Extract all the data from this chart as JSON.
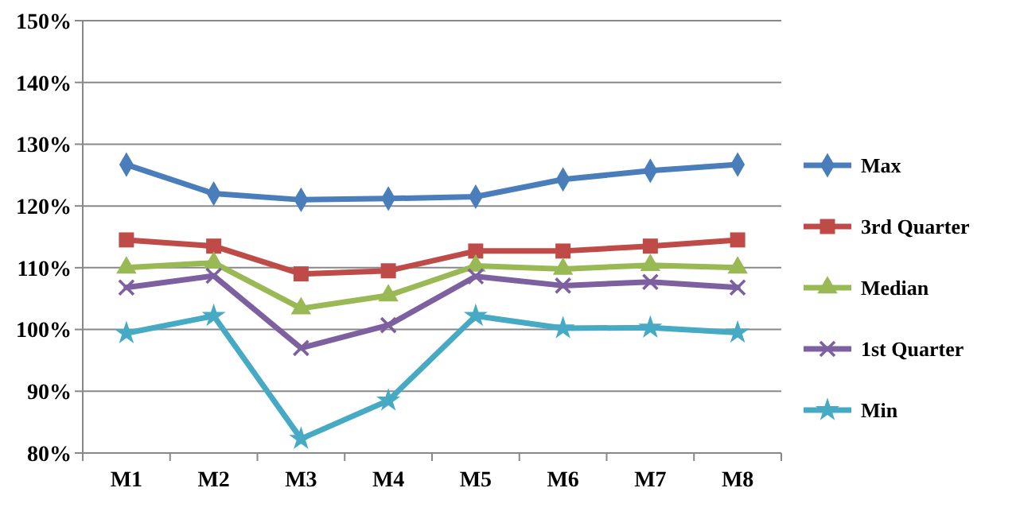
{
  "chart_data": {
    "type": "line",
    "categories": [
      "M1",
      "M2",
      "M3",
      "M4",
      "M5",
      "M6",
      "M7",
      "M8"
    ],
    "series": [
      {
        "name": "Max",
        "color": "#4a7ebb",
        "marker": "diamond",
        "values": [
          126.7,
          122,
          121,
          121.2,
          121.5,
          124.3,
          125.7,
          126.7
        ]
      },
      {
        "name": "3rd Quarter",
        "color": "#be4b48",
        "marker": "square",
        "values": [
          114.5,
          113.5,
          109,
          109.5,
          112.7,
          112.7,
          113.5,
          114.5
        ]
      },
      {
        "name": "Median",
        "color": "#98b954",
        "marker": "triangle",
        "values": [
          110,
          110.8,
          103.4,
          105.5,
          110.3,
          109.8,
          110.4,
          110
        ]
      },
      {
        "name": "1st Quarter",
        "color": "#7d60a0",
        "marker": "cross",
        "values": [
          106.8,
          108.7,
          97,
          100.7,
          108.6,
          107.1,
          107.7,
          106.8
        ]
      },
      {
        "name": "Min",
        "color": "#46aac5",
        "marker": "star",
        "values": [
          99.4,
          102.2,
          82.3,
          88.5,
          102.2,
          100.2,
          100.3,
          99.5
        ]
      }
    ],
    "ylim": [
      80,
      150
    ],
    "yticks": [
      {
        "value": 80,
        "label": "80%"
      },
      {
        "value": 90,
        "label": "90%"
      },
      {
        "value": 100,
        "label": "100%"
      },
      {
        "value": 110,
        "label": "110%"
      },
      {
        "value": 120,
        "label": "120%"
      },
      {
        "value": 130,
        "label": "130%"
      },
      {
        "value": 140,
        "label": "140%"
      },
      {
        "value": 150,
        "label": "150%"
      }
    ],
    "grid": "y",
    "legend": "right",
    "line_style": "solid"
  }
}
